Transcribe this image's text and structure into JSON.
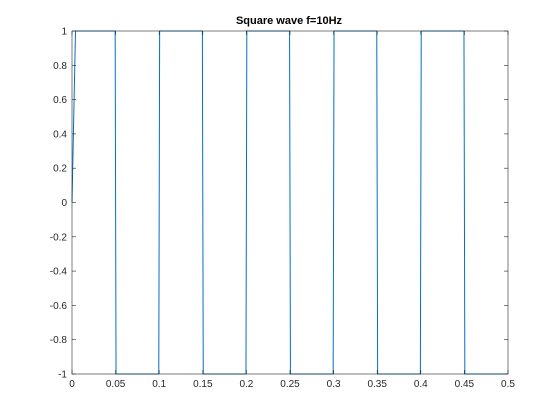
{
  "chart_data": {
    "type": "line",
    "title": "Square wave  f=10Hz",
    "xlabel": "",
    "ylabel": "",
    "xlim": [
      0,
      0.5
    ],
    "ylim": [
      -1,
      1
    ],
    "grid": false,
    "x_ticks": [
      0,
      0.05,
      0.1,
      0.15,
      0.2,
      0.25,
      0.3,
      0.35,
      0.4,
      0.45,
      0.5
    ],
    "x_tick_labels": [
      "0",
      "0.05",
      "0.1",
      "0.15",
      "0.2",
      "0.25",
      "0.3",
      "0.35",
      "0.4",
      "0.45",
      "0.5"
    ],
    "y_ticks": [
      1,
      0.8,
      0.6,
      0.4,
      0.2,
      0,
      -0.2,
      -0.4,
      -0.6,
      -0.8,
      -1
    ],
    "y_tick_labels": [
      "1",
      "0.8",
      "0.6",
      "0.4",
      "0.2",
      "0",
      "-0.2",
      "-0.4",
      "-0.6",
      "-0.8",
      "-1"
    ],
    "series": [
      {
        "color": "#0072bd",
        "x": [
          0,
          0.004,
          0.0495,
          0.0505,
          0.0995,
          0.1005,
          0.1495,
          0.1505,
          0.1995,
          0.2005,
          0.2495,
          0.2505,
          0.2995,
          0.3005,
          0.3495,
          0.3505,
          0.3995,
          0.4005,
          0.4495,
          0.4505,
          0.5
        ],
        "y": [
          0,
          1,
          1,
          -1,
          -1,
          1,
          1,
          -1,
          -1,
          1,
          1,
          -1,
          -1,
          1,
          1,
          -1,
          -1,
          1,
          1,
          -1,
          -1
        ]
      }
    ]
  }
}
